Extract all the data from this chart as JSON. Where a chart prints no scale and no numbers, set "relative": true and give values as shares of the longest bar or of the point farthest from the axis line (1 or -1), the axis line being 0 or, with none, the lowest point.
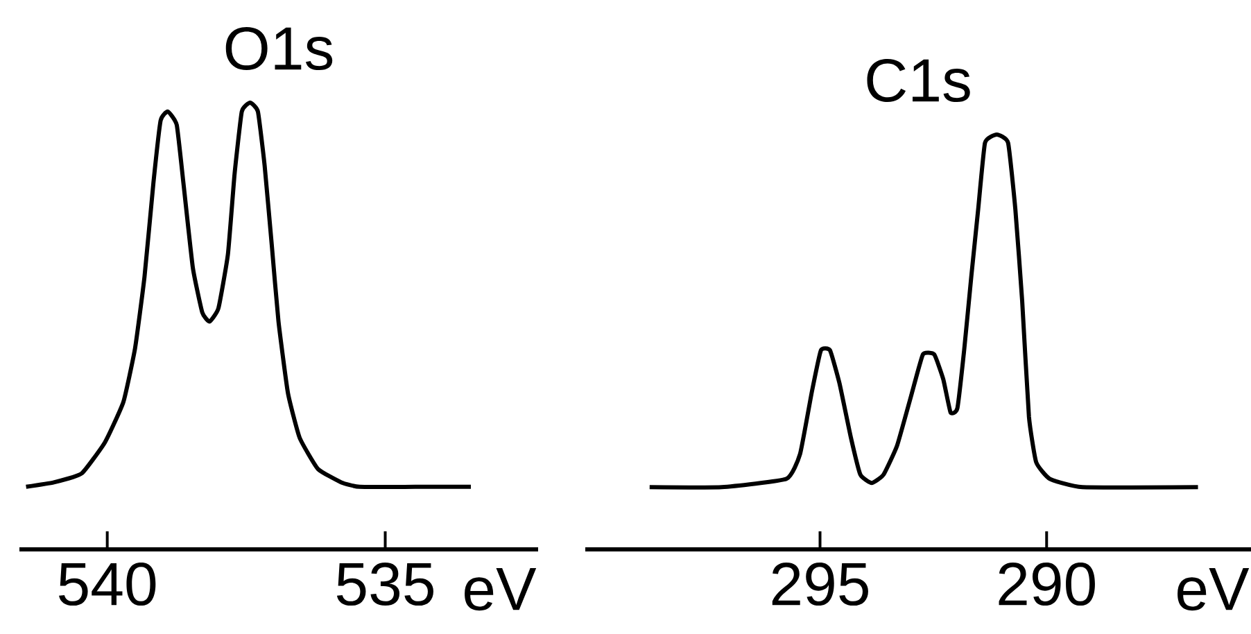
{
  "chart_data": [
    {
      "type": "line",
      "title": "O1s",
      "xlabel": "eV",
      "relative": true,
      "xlim": [
        541.58,
        532.25
      ],
      "xticks": [
        540,
        535
      ],
      "tick_labels": "x",
      "marker": "none",
      "line_style": "solid",
      "series": [
        {
          "color": "#000000",
          "x": [
            541.46,
            540.96,
            540.46,
            540.04,
            539.71,
            539.5,
            539.33,
            539.17,
            539.04,
            538.91,
            538.75,
            538.63,
            538.46,
            538.29,
            538.16,
            538.0,
            537.83,
            537.71,
            537.58,
            537.43,
            537.29,
            537.17,
            537.04,
            536.92,
            536.75,
            536.54,
            536.21,
            535.79,
            535.46,
            534.46,
            533.46
          ],
          "values": [
            0.14,
            0.15,
            0.17,
            0.24,
            0.33,
            0.45,
            0.61,
            0.82,
            0.96,
            0.98,
            0.95,
            0.82,
            0.63,
            0.53,
            0.51,
            0.54,
            0.66,
            0.84,
            0.98,
            1.0,
            0.98,
            0.86,
            0.68,
            0.51,
            0.35,
            0.25,
            0.18,
            0.15,
            0.14,
            0.14,
            0.14
          ]
        }
      ]
    },
    {
      "type": "line",
      "title": "C1s",
      "xlabel": "eV",
      "relative": true,
      "xlim": [
        300.18,
        285.49
      ],
      "xticks": [
        295,
        290
      ],
      "tick_labels": "x",
      "marker": "none",
      "line_style": "solid",
      "series": [
        {
          "color": "#000000",
          "x": [
            298.76,
            297.17,
            295.74,
            295.44,
            295.18,
            294.98,
            294.78,
            294.57,
            294.32,
            294.11,
            293.86,
            293.6,
            293.3,
            292.99,
            292.73,
            292.48,
            292.28,
            292.12,
            291.97,
            291.82,
            291.66,
            291.51,
            291.36,
            291.1,
            290.85,
            290.69,
            290.54,
            290.39,
            290.23,
            289.93,
            289.21,
            286.66
          ],
          "values": [
            0.15,
            0.15,
            0.17,
            0.23,
            0.38,
            0.48,
            0.48,
            0.4,
            0.27,
            0.18,
            0.16,
            0.18,
            0.25,
            0.37,
            0.47,
            0.47,
            0.41,
            0.33,
            0.34,
            0.48,
            0.66,
            0.82,
            0.98,
            1.0,
            0.98,
            0.82,
            0.6,
            0.32,
            0.21,
            0.17,
            0.15,
            0.15
          ]
        }
      ]
    }
  ]
}
